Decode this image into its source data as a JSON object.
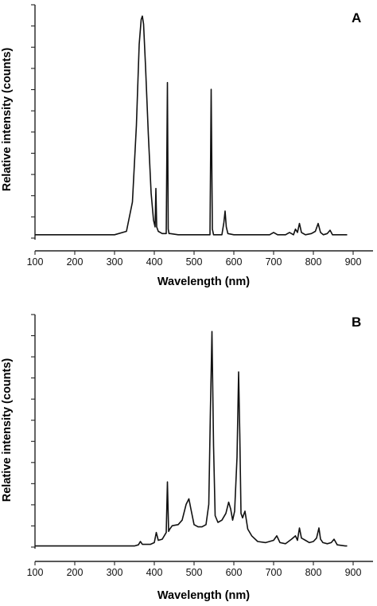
{
  "chart_data": [
    {
      "type": "line",
      "panel_label": "A",
      "xlabel": "Wavelength (nm)",
      "ylabel": "Relative intensity (counts)",
      "xlim": [
        100,
        950
      ],
      "ylim": [
        0,
        1.0
      ],
      "xticks": [
        100,
        200,
        300,
        400,
        500,
        600,
        700,
        800,
        900
      ],
      "ytick_count": 12,
      "y_tick_labels_shown": false,
      "grid": false,
      "series": [
        {
          "x": [
            100,
            300,
            330,
            345,
            355,
            362,
            367,
            370,
            373,
            378,
            385,
            392,
            398,
            402,
            404,
            406,
            410,
            420,
            430,
            433,
            435,
            437,
            440,
            460,
            480,
            500,
            520,
            540,
            543,
            546,
            549,
            552,
            570,
            575,
            578,
            581,
            585,
            600,
            650,
            690,
            700,
            710,
            730,
            740,
            750,
            755,
            760,
            765,
            770,
            780,
            795,
            805,
            812,
            818,
            825,
            835,
            842,
            848,
            860,
            880,
            885
          ],
          "y": [
            0.015,
            0.015,
            0.03,
            0.16,
            0.5,
            0.86,
            0.97,
            0.985,
            0.95,
            0.76,
            0.46,
            0.2,
            0.08,
            0.05,
            0.22,
            0.05,
            0.03,
            0.02,
            0.02,
            0.69,
            0.04,
            0.02,
            0.02,
            0.015,
            0.015,
            0.015,
            0.015,
            0.015,
            0.66,
            0.04,
            0.015,
            0.015,
            0.015,
            0.07,
            0.12,
            0.05,
            0.02,
            0.015,
            0.015,
            0.015,
            0.025,
            0.015,
            0.015,
            0.025,
            0.015,
            0.04,
            0.025,
            0.065,
            0.025,
            0.015,
            0.02,
            0.03,
            0.065,
            0.025,
            0.015,
            0.02,
            0.035,
            0.015,
            0.015,
            0.015,
            0.015
          ]
        }
      ]
    },
    {
      "type": "line",
      "panel_label": "B",
      "xlabel": "Wavelength (nm)",
      "ylabel": "Relative intensity (counts)",
      "xlim": [
        100,
        950
      ],
      "ylim": [
        0,
        1.0
      ],
      "xticks": [
        100,
        200,
        300,
        400,
        500,
        600,
        700,
        800,
        900
      ],
      "ytick_count": 12,
      "y_tick_labels_shown": false,
      "grid": false,
      "series": [
        {
          "x": [
            100,
            350,
            360,
            365,
            370,
            390,
            400,
            405,
            410,
            420,
            430,
            433,
            436,
            439,
            445,
            460,
            470,
            480,
            487,
            492,
            500,
            510,
            520,
            530,
            537,
            541,
            545,
            549,
            553,
            560,
            570,
            580,
            587,
            592,
            597,
            602,
            608,
            612,
            615,
            618,
            622,
            628,
            635,
            645,
            660,
            680,
            700,
            708,
            716,
            730,
            745,
            755,
            760,
            765,
            770,
            780,
            790,
            800,
            808,
            814,
            818,
            824,
            835,
            845,
            852,
            860,
            880,
            885
          ],
          "y": [
            0.005,
            0.005,
            0.01,
            0.025,
            0.012,
            0.012,
            0.02,
            0.065,
            0.03,
            0.035,
            0.065,
            0.29,
            0.07,
            0.08,
            0.095,
            0.1,
            0.12,
            0.19,
            0.215,
            0.17,
            0.1,
            0.09,
            0.09,
            0.1,
            0.19,
            0.6,
            0.96,
            0.45,
            0.14,
            0.11,
            0.12,
            0.15,
            0.2,
            0.17,
            0.12,
            0.16,
            0.4,
            0.78,
            0.5,
            0.15,
            0.13,
            0.16,
            0.08,
            0.05,
            0.025,
            0.02,
            0.03,
            0.05,
            0.02,
            0.015,
            0.035,
            0.05,
            0.03,
            0.085,
            0.04,
            0.03,
            0.02,
            0.025,
            0.04,
            0.085,
            0.035,
            0.02,
            0.015,
            0.02,
            0.035,
            0.01,
            0.005,
            0.005
          ]
        }
      ]
    }
  ]
}
